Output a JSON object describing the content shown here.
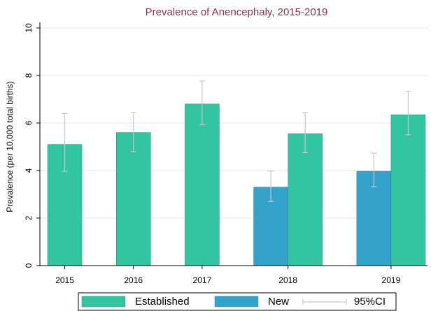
{
  "chart_data": {
    "type": "bar",
    "title": "Prevalence of Anencephaly, 2015-2019",
    "y_label": "Prevalence (per 10,000 total births)",
    "categories": [
      "2015",
      "2016",
      "2017",
      "2018",
      "2019"
    ],
    "series": [
      {
        "name": "Established",
        "color": "#33c4a2",
        "values": [
          5.1,
          5.6,
          6.8,
          5.55,
          6.35
        ],
        "ci_low": [
          3.97,
          4.8,
          5.93,
          4.75,
          5.5
        ],
        "ci_high": [
          6.4,
          6.45,
          7.77,
          6.45,
          7.33
        ]
      },
      {
        "name": "New",
        "color": "#33a3cc",
        "values": [
          null,
          null,
          null,
          3.3,
          3.97
        ],
        "ci_low": [
          null,
          null,
          null,
          2.7,
          3.32
        ],
        "ci_high": [
          null,
          null,
          null,
          3.98,
          4.73
        ]
      }
    ],
    "ci_label": "95%CI",
    "ci_color": "#c8c8c8",
    "ylim": [
      0,
      10
    ],
    "yticks": [
      0,
      2,
      4,
      6,
      8,
      10
    ],
    "grid": true
  }
}
